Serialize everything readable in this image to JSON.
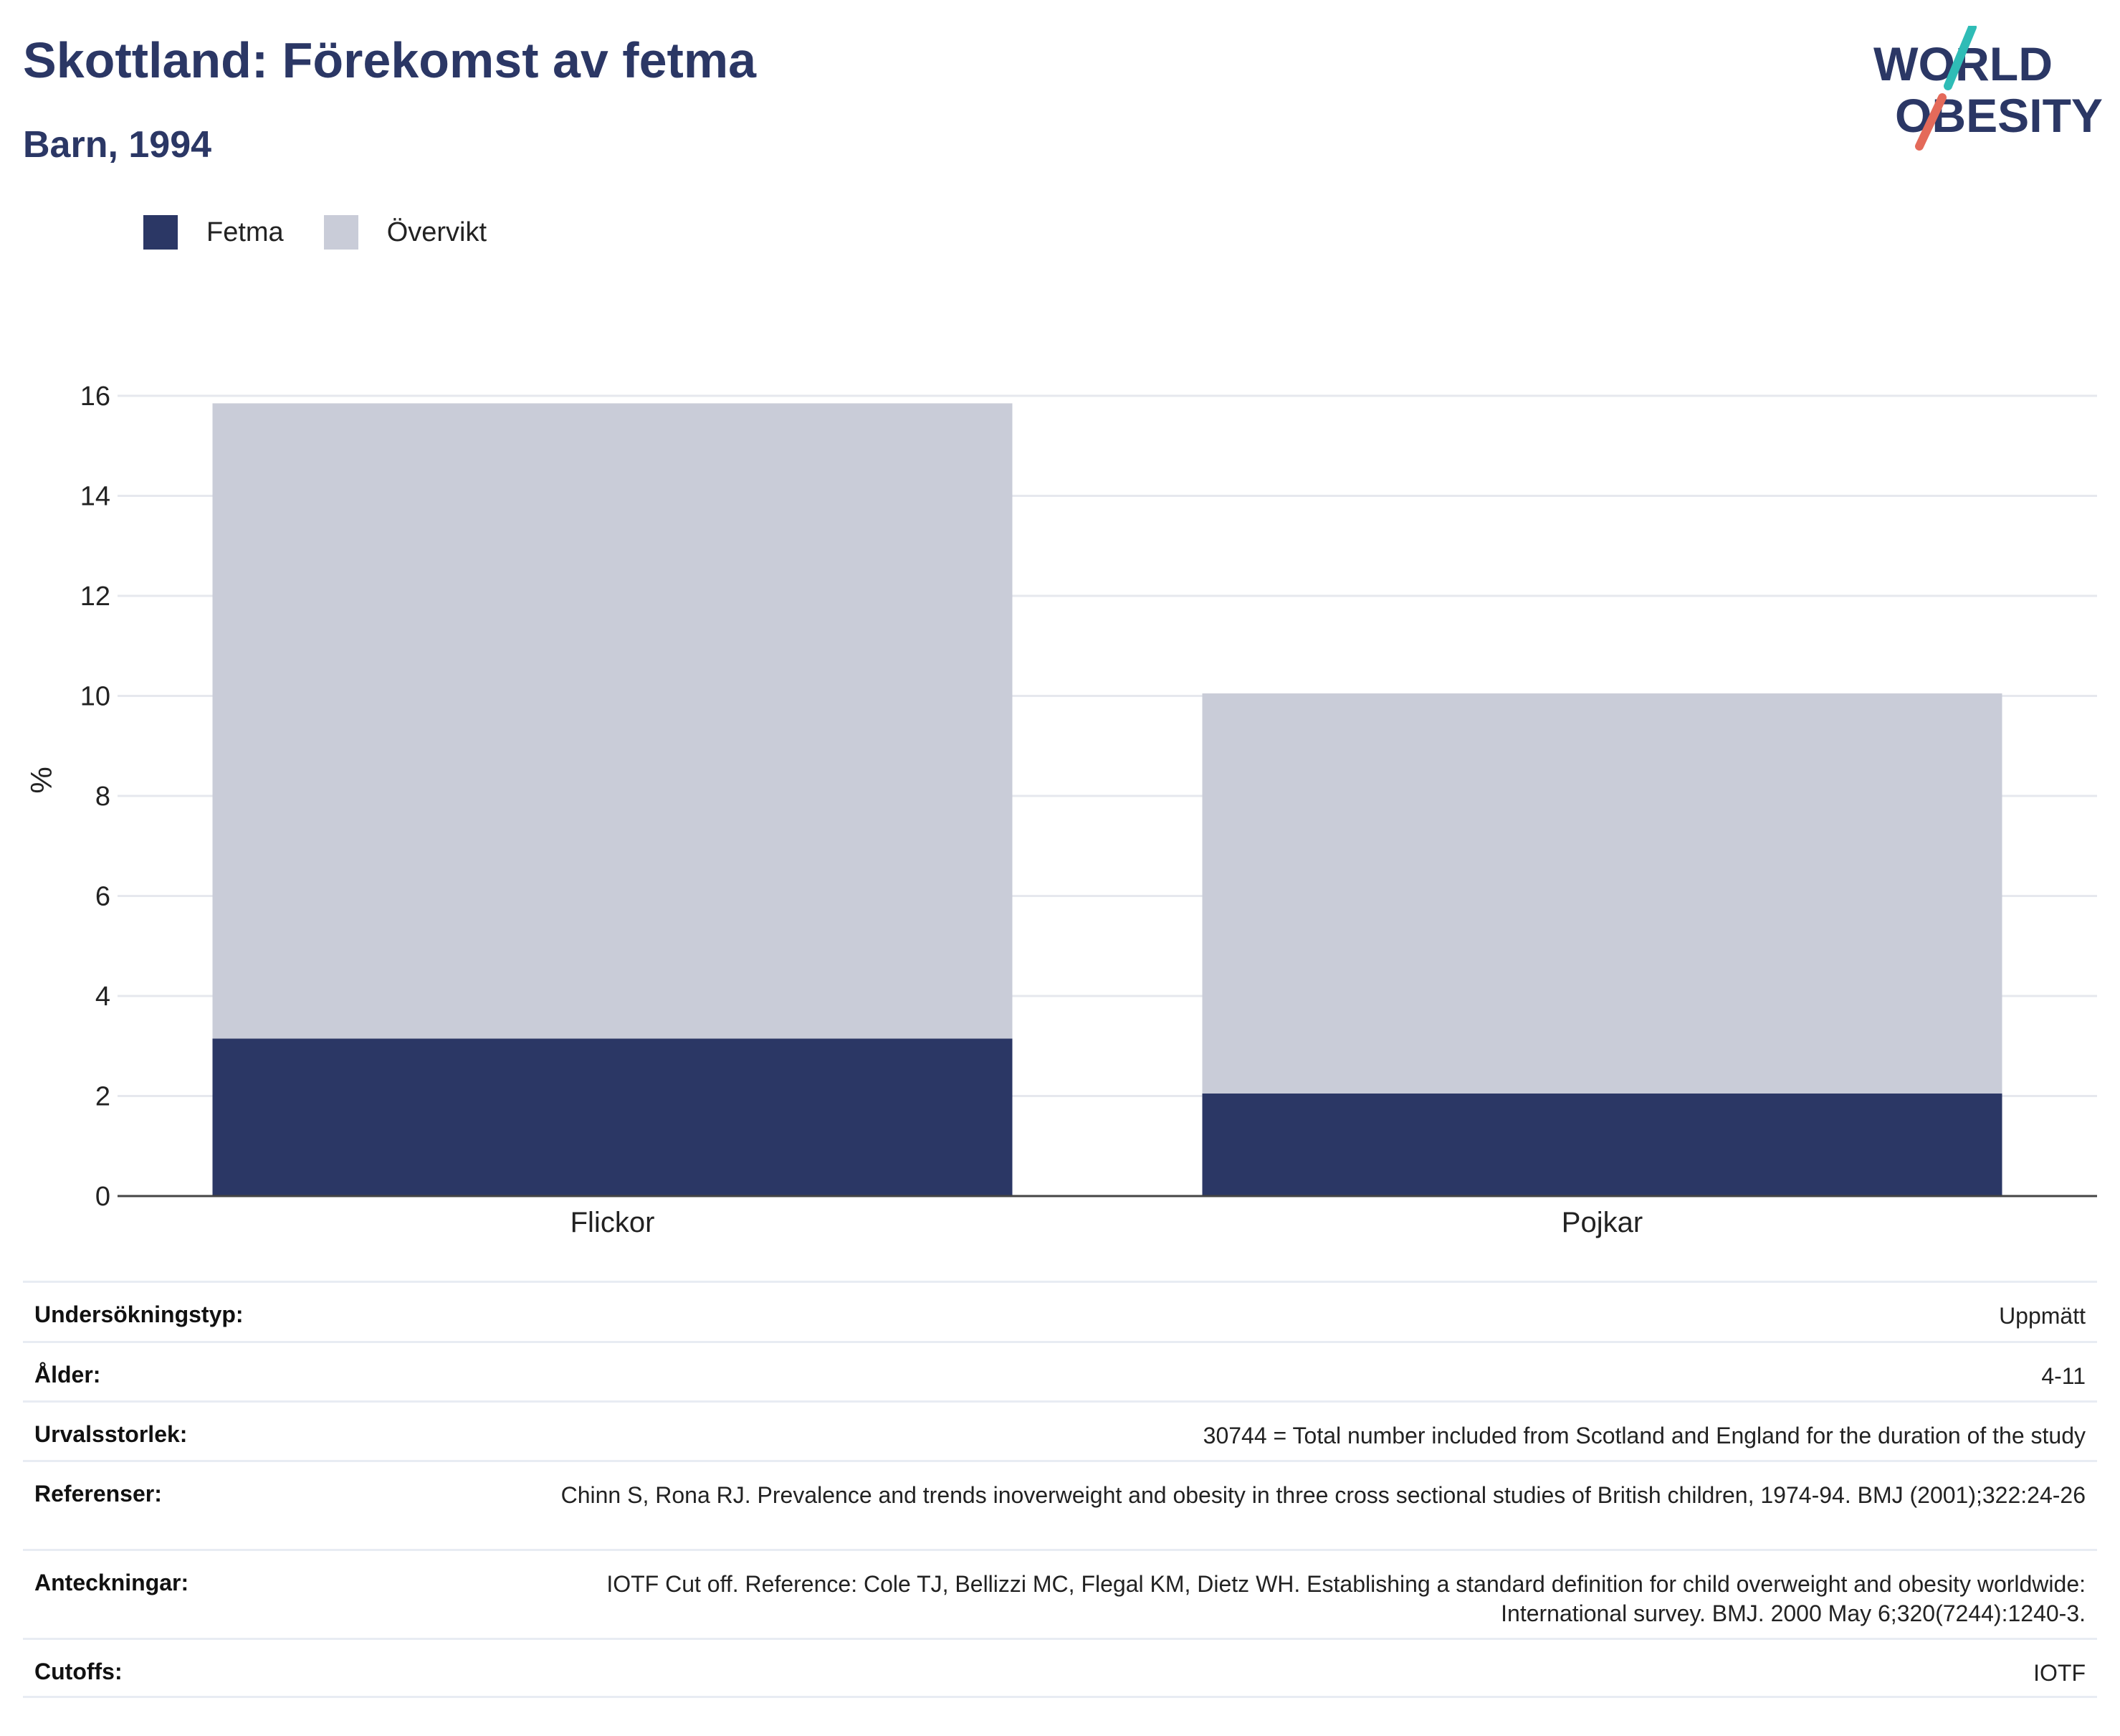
{
  "header": {
    "title": "Skottland: Förekomst av fetma",
    "subtitle": "Barn, 1994"
  },
  "logo": {
    "line1": "WORLD",
    "line2": "OBESITY"
  },
  "colors": {
    "fetma": "#2b3765",
    "overvikt": "#c9ccd8",
    "title": "#2b3765",
    "logo_teal": "#2fbcb6",
    "logo_coral": "#e46a5a"
  },
  "legend": [
    {
      "label": "Fetma",
      "color": "#2b3765"
    },
    {
      "label": "Övervikt",
      "color": "#c9ccd8"
    }
  ],
  "chart_data": {
    "type": "bar",
    "stacked": true,
    "categories": [
      "Flickor",
      "Pojkar"
    ],
    "series": [
      {
        "name": "Fetma",
        "values": [
          3.15,
          2.05
        ]
      },
      {
        "name": "Övervikt",
        "values": [
          12.7,
          8.0
        ]
      }
    ],
    "ylabel": "%",
    "ylim": [
      0,
      16
    ],
    "yticks": [
      "0",
      "2",
      "4",
      "6",
      "8",
      "10",
      "12",
      "14",
      "16"
    ],
    "grid": true,
    "legend_position": "top-left"
  },
  "meta": [
    {
      "label": "Undersökningstyp:",
      "value": "Uppmätt"
    },
    {
      "label": "Ålder:",
      "value": "4-11"
    },
    {
      "label": "Urvalsstorlek:",
      "value": "30744 = Total number included from Scotland and England for the duration of the study"
    },
    {
      "label": "Referenser:",
      "value": "Chinn S, Rona RJ. Prevalence and trends inoverweight and obesity in three cross sectional studies of British children, 1974-94. BMJ (2001);322:24-26"
    },
    {
      "label": "Anteckningar:",
      "value": "IOTF Cut off. Reference: Cole TJ, Bellizzi MC, Flegal KM, Dietz WH. Establishing a standard definition for child overweight and obesity worldwide: International survey. BMJ. 2000 May 6;320(7244):1240-3."
    },
    {
      "label": "Cutoffs:",
      "value": "IOTF"
    }
  ]
}
